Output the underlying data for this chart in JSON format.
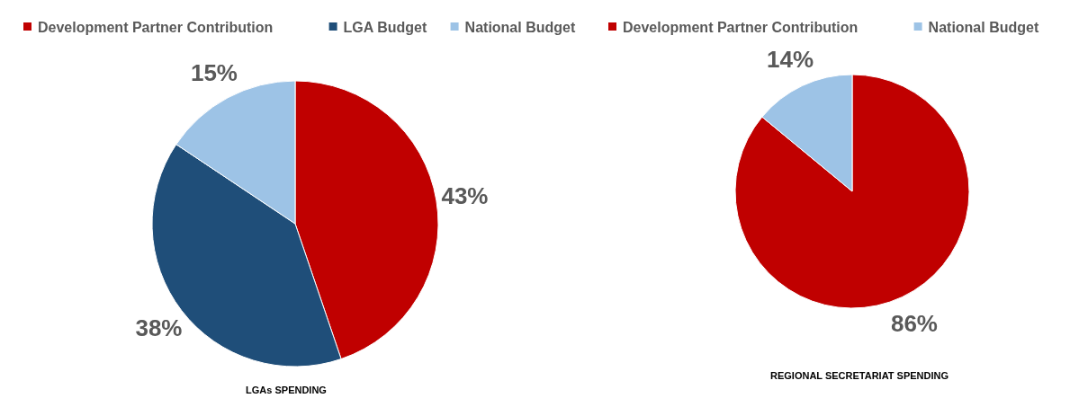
{
  "chart_data": [
    {
      "type": "pie",
      "title": "LGAs SPENDING",
      "categories": [
        "Development Partner Contribution",
        "LGA Budget",
        "National Budget"
      ],
      "values": [
        43,
        38,
        15
      ],
      "value_labels": [
        "43%",
        "38%",
        "15%"
      ],
      "colors": [
        "#c00000",
        "#1f4e79",
        "#9dc3e6"
      ],
      "legend": "top"
    },
    {
      "type": "pie",
      "title": "REGIONAL SECRETARIAT  SPENDING",
      "categories": [
        "Development Partner Contribution",
        "National Budget"
      ],
      "values": [
        86,
        14
      ],
      "value_labels": [
        "86%",
        "14%"
      ],
      "colors": [
        "#c00000",
        "#9dc3e6"
      ],
      "legend": "top"
    }
  ]
}
